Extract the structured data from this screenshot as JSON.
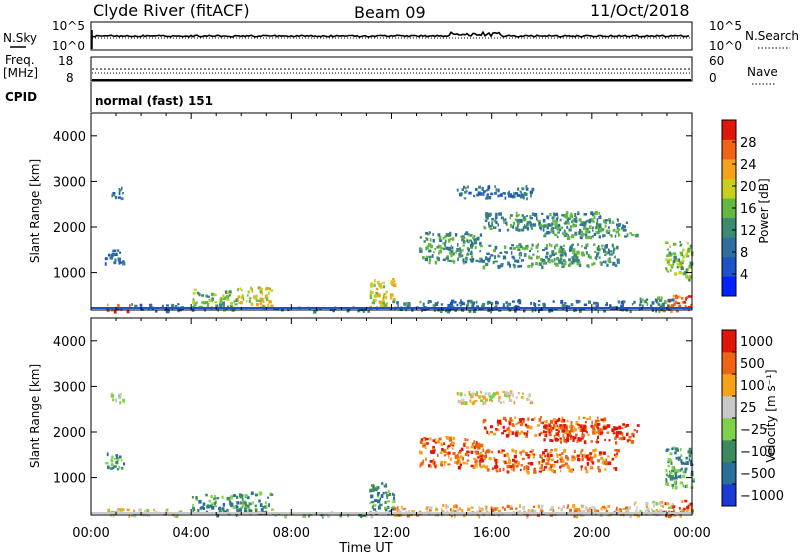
{
  "header": {
    "station": "Clyde River (fitACF)",
    "beam": "Beam 09",
    "date": "11/Oct/2018"
  },
  "status_panels": {
    "noise": {
      "left_label": "N.Sky",
      "left_ticks": [
        "10^5",
        "10^0"
      ],
      "right_ticks": [
        "10^5",
        "10^0"
      ],
      "right_label": "N.Search"
    },
    "freq": {
      "left_label_1": "Freq.",
      "left_label_2": "[MHz]",
      "left_ticks": [
        "18",
        "8"
      ],
      "right_ticks": [
        "60",
        "0"
      ],
      "right_label": "Nave"
    },
    "cpid": {
      "label": "CPID",
      "value": "normal (fast) 151"
    }
  },
  "chart_data": [
    {
      "type": "heatmap",
      "parameter": "Power",
      "ylabel": "Slant Range [km]",
      "ylim": [
        180,
        4500
      ],
      "yticks": [
        "1000",
        "2000",
        "3000",
        "4000"
      ],
      "xlabel": "Time UT",
      "xticks": [
        "00:00",
        "04:00",
        "08:00",
        "12:00",
        "16:00",
        "20:00",
        "00:00"
      ],
      "xlim_hours": [
        0,
        24
      ],
      "colorbar": {
        "label": "Power [dB]",
        "range": [
          0,
          32
        ],
        "tick_values": [
          4,
          8,
          12,
          16,
          20,
          24,
          28
        ],
        "colors": [
          "#0022ff",
          "#1d53c8",
          "#2f6fa0",
          "#3d8a72",
          "#63b840",
          "#c7cf1c",
          "#f5a21a",
          "#ee6314",
          "#e01608"
        ]
      },
      "patches": [
        {
          "t0": 0.55,
          "t1": 1.3,
          "r0": 1200,
          "r1": 1560,
          "level": 9
        },
        {
          "t0": 0.75,
          "t1": 1.25,
          "r0": 2650,
          "r1": 2920,
          "level": 9
        },
        {
          "t0": 0.6,
          "t1": 1.6,
          "r0": 180,
          "r1": 340,
          "level": 27
        },
        {
          "t0": 1.6,
          "t1": 3.6,
          "r0": 180,
          "r1": 330,
          "level": 10
        },
        {
          "t0": 4.0,
          "t1": 5.8,
          "r0": 200,
          "r1": 650,
          "level": 17
        },
        {
          "t0": 5.8,
          "t1": 7.2,
          "r0": 250,
          "r1": 700,
          "level": 21
        },
        {
          "t0": 7.2,
          "t1": 11.2,
          "r0": 180,
          "r1": 260,
          "level": 10
        },
        {
          "t0": 11.1,
          "t1": 12.1,
          "r0": 250,
          "r1": 900,
          "level": 19
        },
        {
          "t0": 12.0,
          "t1": 14.0,
          "r0": 180,
          "r1": 400,
          "level": 13
        },
        {
          "t0": 13.1,
          "t1": 15.6,
          "r0": 1250,
          "r1": 1920,
          "level": 14
        },
        {
          "t0": 14.6,
          "t1": 17.6,
          "r0": 2650,
          "r1": 2920,
          "level": 10
        },
        {
          "t0": 15.6,
          "t1": 20.5,
          "r0": 1950,
          "r1": 2350,
          "level": 12
        },
        {
          "t0": 15.5,
          "t1": 21.0,
          "r0": 1150,
          "r1": 1650,
          "level": 13
        },
        {
          "t0": 18.0,
          "t1": 21.8,
          "r0": 1800,
          "r1": 2200,
          "level": 11
        },
        {
          "t0": 14.0,
          "t1": 21.5,
          "r0": 180,
          "r1": 420,
          "level": 10
        },
        {
          "t0": 21.5,
          "t1": 23.2,
          "r0": 180,
          "r1": 500,
          "level": 14
        },
        {
          "t0": 22.8,
          "t1": 24.0,
          "r0": 180,
          "r1": 520,
          "level": 27
        },
        {
          "t0": 22.9,
          "t1": 24.0,
          "r0": 800,
          "r1": 1700,
          "level": 15
        }
      ]
    },
    {
      "type": "heatmap",
      "parameter": "Velocity",
      "ylabel": "Slant Range [km]",
      "ylim": [
        180,
        4500
      ],
      "yticks": [
        "1000",
        "2000",
        "3000",
        "4000"
      ],
      "xlabel": "Time UT",
      "xticks": [
        "00:00",
        "04:00",
        "08:00",
        "12:00",
        "16:00",
        "20:00",
        "00:00"
      ],
      "xlim_hours": [
        0,
        24
      ],
      "colorbar": {
        "label": "Velocity [m s⁻¹]",
        "tick_labels": [
          "1000",
          "500",
          "100",
          "25",
          "−25",
          "−100",
          "−500",
          "−1000"
        ],
        "colors": [
          "#1a3ad8",
          "#2a6e9a",
          "#3d8a5e",
          "#7ed24a",
          "#c8c8c8",
          "#f5a21a",
          "#ee6314",
          "#e01608"
        ]
      },
      "patches": [
        {
          "t0": 0.55,
          "t1": 1.3,
          "r0": 1200,
          "r1": 1560,
          "band": 2
        },
        {
          "t0": 0.75,
          "t1": 1.25,
          "r0": 2650,
          "r1": 2920,
          "band": 4
        },
        {
          "t0": 0.6,
          "t1": 1.6,
          "r0": 180,
          "r1": 340,
          "band": 4
        },
        {
          "t0": 1.6,
          "t1": 3.6,
          "r0": 180,
          "r1": 330,
          "band": 4
        },
        {
          "t0": 4.0,
          "t1": 5.8,
          "r0": 200,
          "r1": 650,
          "band": 2
        },
        {
          "t0": 5.8,
          "t1": 7.2,
          "r0": 250,
          "r1": 700,
          "band": 2
        },
        {
          "t0": 7.2,
          "t1": 11.2,
          "r0": 180,
          "r1": 260,
          "band": 3
        },
        {
          "t0": 11.1,
          "t1": 12.1,
          "r0": 250,
          "r1": 900,
          "band": 2
        },
        {
          "t0": 12.0,
          "t1": 14.0,
          "r0": 180,
          "r1": 400,
          "band": 5
        },
        {
          "t0": 13.1,
          "t1": 15.6,
          "r0": 1250,
          "r1": 1920,
          "band": 6
        },
        {
          "t0": 14.6,
          "t1": 17.6,
          "r0": 2650,
          "r1": 2920,
          "band": 4
        },
        {
          "t0": 15.6,
          "t1": 20.5,
          "r0": 1950,
          "r1": 2350,
          "band": 6
        },
        {
          "t0": 15.5,
          "t1": 21.0,
          "r0": 1150,
          "r1": 1650,
          "band": 6
        },
        {
          "t0": 18.0,
          "t1": 21.8,
          "r0": 1800,
          "r1": 2200,
          "band": 7
        },
        {
          "t0": 14.0,
          "t1": 21.5,
          "r0": 180,
          "r1": 420,
          "band": 5
        },
        {
          "t0": 21.5,
          "t1": 23.2,
          "r0": 180,
          "r1": 500,
          "band": 4
        },
        {
          "t0": 22.8,
          "t1": 24.0,
          "r0": 180,
          "r1": 520,
          "band": 6
        },
        {
          "t0": 22.9,
          "t1": 24.0,
          "r0": 800,
          "r1": 1700,
          "band": 2
        }
      ]
    }
  ]
}
